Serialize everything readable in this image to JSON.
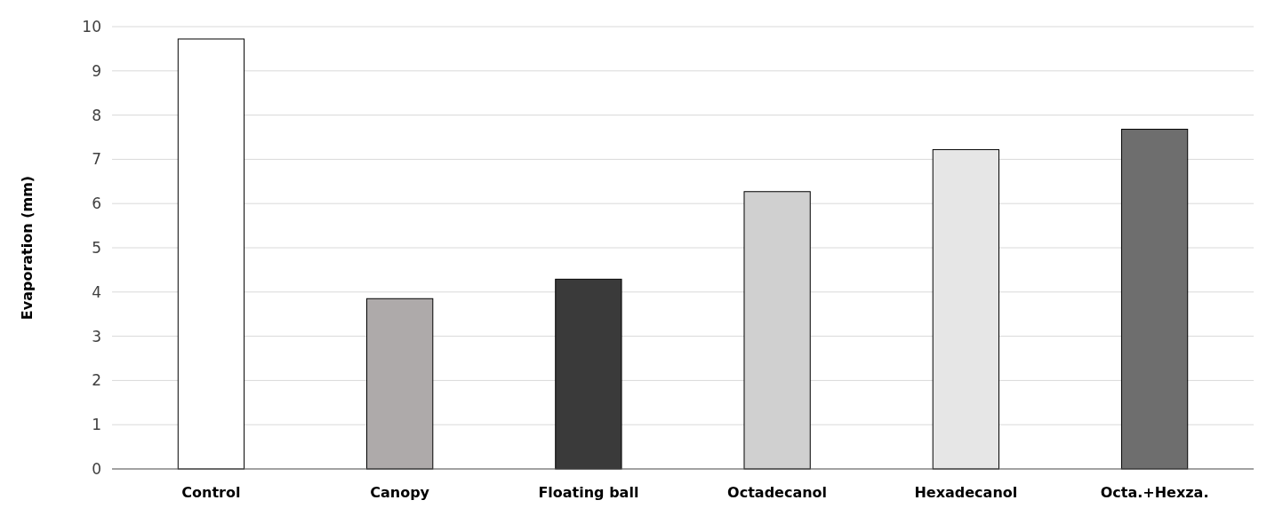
{
  "chart_data": {
    "type": "bar",
    "ylabel": "Evaporation (mm)",
    "categories": [
      "Control",
      "Canopy",
      "Floating ball",
      "Octadecanol",
      "Hexadecanol",
      "Octa.+Hexza."
    ],
    "values": [
      9.72,
      3.85,
      4.29,
      6.27,
      7.22,
      7.68
    ],
    "colors": [
      "#ffffff",
      "#aeaaaa",
      "#3a3a3a",
      "#d0d0d0",
      "#e6e6e6",
      "#6e6e6e"
    ],
    "ylim": [
      0,
      10
    ],
    "yticks": [
      0,
      1,
      2,
      3,
      4,
      5,
      6,
      7,
      8,
      9,
      10
    ],
    "grid": "y"
  }
}
